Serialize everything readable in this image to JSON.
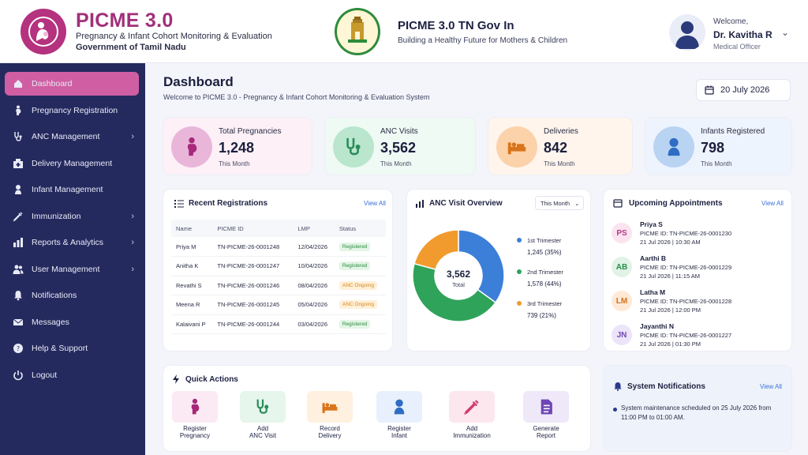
{
  "header": {
    "app_title": "PICME 3.0",
    "app_subtitle": "Pregnancy & Infant Cohort Monitoring & Evaluation",
    "app_org": "Government of Tamil Nadu",
    "gov_title": "PICME 3.0 TN Gov In",
    "gov_subtitle": "Building a Healthy Future for Mothers & Children",
    "welcome": "Welcome,",
    "user_name": "Dr. Kavitha R",
    "user_role": "Medical Officer",
    "icons": {
      "logo": "mother-child-logo-icon",
      "emblem": "tamil-nadu-emblem-icon",
      "avatar": "user-avatar-icon"
    }
  },
  "sidebar": {
    "items": [
      {
        "label": "Dashboard",
        "icon": "home-icon",
        "active": true,
        "chevron": false
      },
      {
        "label": "Pregnancy Registration",
        "icon": "pregnant-woman-icon",
        "active": false,
        "chevron": false
      },
      {
        "label": "ANC Management",
        "icon": "stethoscope-icon",
        "active": false,
        "chevron": true
      },
      {
        "label": "Delivery Management",
        "icon": "hospital-icon",
        "active": false,
        "chevron": false
      },
      {
        "label": "Infant Management",
        "icon": "baby-icon",
        "active": false,
        "chevron": false
      },
      {
        "label": "Immunization",
        "icon": "syringe-icon",
        "active": false,
        "chevron": true
      },
      {
        "label": "Reports & Analytics",
        "icon": "bar-chart-icon",
        "active": false,
        "chevron": true
      },
      {
        "label": "User Management",
        "icon": "users-icon",
        "active": false,
        "chevron": true
      },
      {
        "label": "Notifications",
        "icon": "bell-icon",
        "active": false,
        "chevron": false
      },
      {
        "label": "Messages",
        "icon": "envelope-icon",
        "active": false,
        "chevron": false
      },
      {
        "label": "Help & Support",
        "icon": "help-icon",
        "active": false,
        "chevron": false
      },
      {
        "label": "Logout",
        "icon": "power-icon",
        "active": false,
        "chevron": false
      }
    ]
  },
  "main": {
    "title": "Dashboard",
    "subtitle": "Welcome to PICME 3.0 - Pregnancy & Infant Cohort Monitoring & Evaluation System",
    "date": "20 July 2026"
  },
  "stats": [
    {
      "label": "Total Pregnancies",
      "value": "1,248",
      "period": "This Month",
      "icon": "pregnant-woman-icon",
      "bg": "#fdf0f7",
      "icon_bg": "#e9b6da",
      "icon_color": "#a8287a"
    },
    {
      "label": "ANC Visits",
      "value": "3,562",
      "period": "This Month",
      "icon": "stethoscope-icon",
      "bg": "#effaf4",
      "icon_bg": "#b9e6cd",
      "icon_color": "#2a8c5a"
    },
    {
      "label": "Deliveries",
      "value": "842",
      "period": "This Month",
      "icon": "bed-icon",
      "bg": "#fff5ec",
      "icon_bg": "#fbd2aa",
      "icon_color": "#d9741a"
    },
    {
      "label": "Infants Registered",
      "value": "798",
      "period": "This Month",
      "icon": "baby-icon",
      "bg": "#eef4fd",
      "icon_bg": "#b9d3f3",
      "icon_color": "#2f6cc4"
    }
  ],
  "recent": {
    "title": "Recent Registrations",
    "view_all": "View All",
    "columns": [
      "Name",
      "PICME ID",
      "LMP",
      "Status"
    ],
    "rows": [
      {
        "name": "Priya M",
        "id": "TN-PICME-26-0001248",
        "lmp": "12/04/2026",
        "status": "Registered",
        "kind": "green"
      },
      {
        "name": "Anitha K",
        "id": "TN-PICME-26-0001247",
        "lmp": "10/04/2026",
        "status": "Registered",
        "kind": "green"
      },
      {
        "name": "Revathi S",
        "id": "TN-PICME-26-0001246",
        "lmp": "08/04/2026",
        "status": "ANC Ongoing",
        "kind": "orange"
      },
      {
        "name": "Meena R",
        "id": "TN-PICME-26-0001245",
        "lmp": "05/04/2026",
        "status": "ANC Ongoing",
        "kind": "orange"
      },
      {
        "name": "Kalaivani P",
        "id": "TN-PICME-26-0001244",
        "lmp": "03/04/2026",
        "status": "Registered",
        "kind": "green"
      }
    ]
  },
  "anc": {
    "title": "ANC Visit Overview",
    "filter": "This Month",
    "total_value": "3,562",
    "total_label": "Total"
  },
  "chart_data": {
    "type": "pie",
    "categories": [
      "1st Trimester",
      "2nd Trimester",
      "3rd Trimester"
    ],
    "values": [
      1245,
      1578,
      739
    ],
    "labels": [
      "1,245 (35%)",
      "1,578 (44%)",
      "739 (21%)"
    ],
    "colors": [
      "#3b7fd9",
      "#2fa35a",
      "#f19a2e"
    ]
  },
  "appointments": {
    "title": "Upcoming Appointments",
    "view_all": "View All",
    "items": [
      {
        "initials": "PS",
        "name": "Priya S",
        "id": "PICME ID: TN-PICME-26-0001230",
        "time": "21 Jul 2026 | 10:30 AM",
        "bg": "#fbe3f0",
        "fg": "#b13d86"
      },
      {
        "initials": "AB",
        "name": "Aarthi B",
        "id": "PICME ID: TN-PICME-26-0001229",
        "time": "21 Jul 2026 | 11:15 AM",
        "bg": "#e0f3e6",
        "fg": "#2b8c4d"
      },
      {
        "initials": "LM",
        "name": "Latha M",
        "id": "PICME ID: TN-PICME-26-0001228",
        "time": "21 Jul 2026 | 12:00 PM",
        "bg": "#fde9d6",
        "fg": "#d2711c"
      },
      {
        "initials": "JN",
        "name": "Jayanthi N",
        "id": "PICME ID: TN-PICME-26-0001227",
        "time": "21 Jul 2026 | 01:30 PM",
        "bg": "#ece4f8",
        "fg": "#6e45b5"
      }
    ]
  },
  "quick_actions": {
    "title": "Quick Actions",
    "items": [
      {
        "l1": "Register",
        "l2": "Pregnancy",
        "icon": "pregnant-woman-icon",
        "bg": "#fbeaf4",
        "fg": "#a8287a"
      },
      {
        "l1": "Add",
        "l2": "ANC Visit",
        "icon": "stethoscope-icon",
        "bg": "#e6f6ec",
        "fg": "#2a8c5a"
      },
      {
        "l1": "Record",
        "l2": "Delivery",
        "icon": "bed-icon",
        "bg": "#fff0e0",
        "fg": "#d9741a"
      },
      {
        "l1": "Register",
        "l2": "Infant",
        "icon": "baby-icon",
        "bg": "#e7f0fc",
        "fg": "#2f6cc4"
      },
      {
        "l1": "Add",
        "l2": "Immunization",
        "icon": "syringe-icon",
        "bg": "#fde7ef",
        "fg": "#d23b6b"
      },
      {
        "l1": "Generate",
        "l2": "Report",
        "icon": "document-icon",
        "bg": "#eee8f9",
        "fg": "#6e45b5"
      }
    ]
  },
  "notifications": {
    "title": "System Notifications",
    "view_all": "View All",
    "message": "System maintenance scheduled on 25 July 2026 from 11:00 PM to 01:00 AM."
  }
}
